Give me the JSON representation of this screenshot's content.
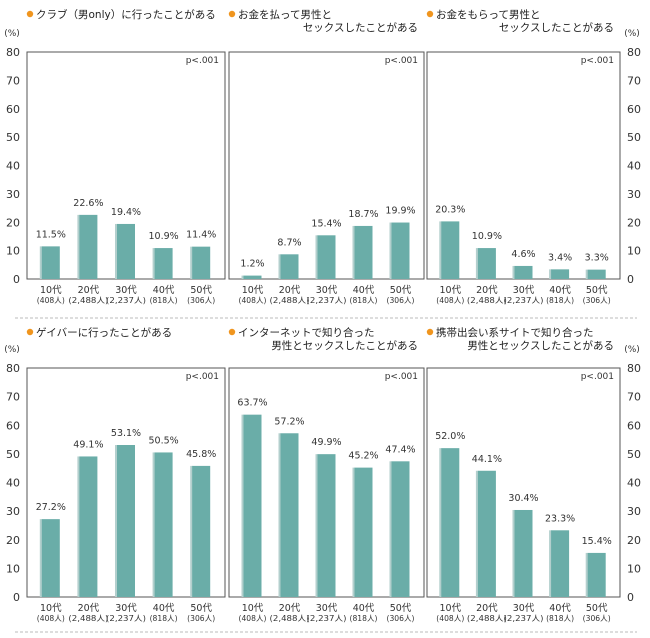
{
  "unit_label": "(%)",
  "y_ticks": [
    "0",
    "10",
    "20",
    "30",
    "40",
    "50",
    "60",
    "70",
    "80"
  ],
  "colors": {
    "bar": "#6aada8",
    "bar_shadow": "#b3cfcd",
    "bullet": "#f0951e",
    "frame": "#555555",
    "divider": "#bbbbbb"
  },
  "chart_data": [
    {
      "type": "bar",
      "title": [
        "クラブ（男only）に行ったことがある"
      ],
      "pvalue": "p<.001",
      "ylim": [
        0,
        80
      ],
      "categories": [
        {
          "age": "10代",
          "n": "(408人)"
        },
        {
          "age": "20代",
          "n": "(2,488人)"
        },
        {
          "age": "30代",
          "n": "(2,237人)"
        },
        {
          "age": "40代",
          "n": "(818人)"
        },
        {
          "age": "50代",
          "n": "(306人)"
        }
      ],
      "values": [
        11.5,
        22.6,
        19.4,
        10.9,
        11.4
      ],
      "value_labels": [
        "11.5%",
        "22.6%",
        "19.4%",
        "10.9%",
        "11.4%"
      ]
    },
    {
      "type": "bar",
      "title": [
        "お金を払って男性と",
        "セックスしたことがある"
      ],
      "pvalue": "p<.001",
      "ylim": [
        0,
        80
      ],
      "categories": [
        {
          "age": "10代",
          "n": "(408人)"
        },
        {
          "age": "20代",
          "n": "(2,488人)"
        },
        {
          "age": "30代",
          "n": "(2,237人)"
        },
        {
          "age": "40代",
          "n": "(818人)"
        },
        {
          "age": "50代",
          "n": "(306人)"
        }
      ],
      "values": [
        1.2,
        8.7,
        15.4,
        18.7,
        19.9
      ],
      "value_labels": [
        "1.2%",
        "8.7%",
        "15.4%",
        "18.7%",
        "19.9%"
      ]
    },
    {
      "type": "bar",
      "title": [
        "お金をもらって男性と",
        "セックスしたことがある"
      ],
      "pvalue": "p<.001",
      "ylim": [
        0,
        80
      ],
      "categories": [
        {
          "age": "10代",
          "n": "(408人)"
        },
        {
          "age": "20代",
          "n": "(2,488人)"
        },
        {
          "age": "30代",
          "n": "(2,237人)"
        },
        {
          "age": "40代",
          "n": "(818人)"
        },
        {
          "age": "50代",
          "n": "(306人)"
        }
      ],
      "values": [
        20.3,
        10.9,
        4.6,
        3.4,
        3.3
      ],
      "value_labels": [
        "20.3%",
        "10.9%",
        "4.6%",
        "3.4%",
        "3.3%"
      ]
    },
    {
      "type": "bar",
      "title": [
        "ゲイバーに行ったことがある"
      ],
      "pvalue": "p<.001",
      "ylim": [
        0,
        80
      ],
      "categories": [
        {
          "age": "10代",
          "n": "(408人)"
        },
        {
          "age": "20代",
          "n": "(2,488人)"
        },
        {
          "age": "30代",
          "n": "(2,237人)"
        },
        {
          "age": "40代",
          "n": "(818人)"
        },
        {
          "age": "50代",
          "n": "(306人)"
        }
      ],
      "values": [
        27.2,
        49.1,
        53.1,
        50.5,
        45.8
      ],
      "value_labels": [
        "27.2%",
        "49.1%",
        "53.1%",
        "50.5%",
        "45.8%"
      ]
    },
    {
      "type": "bar",
      "title": [
        "インターネットで知り合った",
        "男性とセックスしたことがある"
      ],
      "pvalue": "p<.001",
      "ylim": [
        0,
        80
      ],
      "categories": [
        {
          "age": "10代",
          "n": "(408人)"
        },
        {
          "age": "20代",
          "n": "(2,488人)"
        },
        {
          "age": "30代",
          "n": "(2,237人)"
        },
        {
          "age": "40代",
          "n": "(818人)"
        },
        {
          "age": "50代",
          "n": "(306人)"
        }
      ],
      "values": [
        63.7,
        57.2,
        49.9,
        45.2,
        47.4
      ],
      "value_labels": [
        "63.7%",
        "57.2%",
        "49.9%",
        "45.2%",
        "47.4%"
      ]
    },
    {
      "type": "bar",
      "title": [
        "携帯出会い系サイトで知り合った",
        "男性とセックスしたことがある"
      ],
      "pvalue": "p<.001",
      "ylim": [
        0,
        80
      ],
      "categories": [
        {
          "age": "10代",
          "n": "(408人)"
        },
        {
          "age": "20代",
          "n": "(2,488人)"
        },
        {
          "age": "30代",
          "n": "(2,237人)"
        },
        {
          "age": "40代",
          "n": "(818人)"
        },
        {
          "age": "50代",
          "n": "(306人)"
        }
      ],
      "values": [
        52.0,
        44.1,
        30.4,
        23.3,
        15.4
      ],
      "value_labels": [
        "52.0%",
        "44.1%",
        "30.4%",
        "23.3%",
        "15.4%"
      ]
    }
  ]
}
